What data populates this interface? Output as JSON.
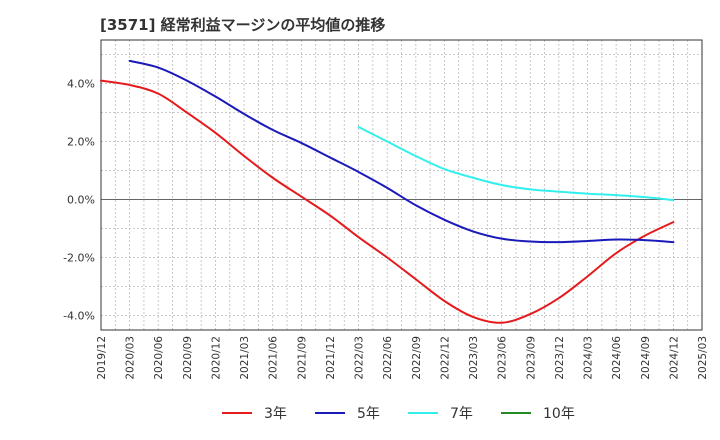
{
  "chart_data": {
    "type": "line",
    "title": "[3571]  経常利益マージンの平均値の推移",
    "xlabel": "",
    "ylabel": "",
    "x_ticks": [
      "2019/12",
      "2020/03",
      "2020/06",
      "2020/09",
      "2020/12",
      "2021/03",
      "2021/06",
      "2021/09",
      "2021/12",
      "2022/03",
      "2022/06",
      "2022/09",
      "2022/12",
      "2023/03",
      "2023/06",
      "2023/09",
      "2023/12",
      "2024/03",
      "2024/06",
      "2024/09",
      "2024/12",
      "2025/03"
    ],
    "y_ticks": [
      "-4.0%",
      "-2.0%",
      "0.0%",
      "2.0%",
      "4.0%"
    ],
    "y_tick_values": [
      -4,
      -2,
      0,
      2,
      4
    ],
    "ylim": [
      -4.5,
      5.5
    ],
    "grid": true,
    "legend_position": "bottom",
    "series": [
      {
        "name": "3年",
        "color": "#e41a1c",
        "points": [
          [
            "2019/12",
            4.1
          ],
          [
            "2020/03",
            3.95
          ],
          [
            "2020/06",
            3.65
          ],
          [
            "2020/09",
            3.0
          ],
          [
            "2020/12",
            2.3
          ],
          [
            "2021/03",
            1.5
          ],
          [
            "2021/06",
            0.75
          ],
          [
            "2021/09",
            0.1
          ],
          [
            "2021/12",
            -0.55
          ],
          [
            "2022/03",
            -1.3
          ],
          [
            "2022/06",
            -2.0
          ],
          [
            "2022/09",
            -2.75
          ],
          [
            "2022/12",
            -3.5
          ],
          [
            "2023/03",
            -4.05
          ],
          [
            "2023/06",
            -4.25
          ],
          [
            "2023/09",
            -3.95
          ],
          [
            "2023/12",
            -3.4
          ],
          [
            "2024/03",
            -2.65
          ],
          [
            "2024/06",
            -1.85
          ],
          [
            "2024/09",
            -1.25
          ],
          [
            "2024/12",
            -0.78
          ]
        ]
      },
      {
        "name": "5年",
        "color": "#1a1aba",
        "points": [
          [
            "2020/03",
            4.78
          ],
          [
            "2020/06",
            4.55
          ],
          [
            "2020/09",
            4.1
          ],
          [
            "2020/12",
            3.55
          ],
          [
            "2021/03",
            2.95
          ],
          [
            "2021/06",
            2.4
          ],
          [
            "2021/09",
            1.95
          ],
          [
            "2021/12",
            1.45
          ],
          [
            "2022/03",
            0.95
          ],
          [
            "2022/06",
            0.4
          ],
          [
            "2022/09",
            -0.2
          ],
          [
            "2022/12",
            -0.7
          ],
          [
            "2023/03",
            -1.1
          ],
          [
            "2023/06",
            -1.35
          ],
          [
            "2023/09",
            -1.45
          ],
          [
            "2023/12",
            -1.47
          ],
          [
            "2024/03",
            -1.43
          ],
          [
            "2024/06",
            -1.38
          ],
          [
            "2024/09",
            -1.4
          ],
          [
            "2024/12",
            -1.47
          ]
        ]
      },
      {
        "name": "7年",
        "color": "#33eeee",
        "points": [
          [
            "2022/03",
            2.5
          ],
          [
            "2022/06",
            2.0
          ],
          [
            "2022/09",
            1.5
          ],
          [
            "2022/12",
            1.05
          ],
          [
            "2023/03",
            0.75
          ],
          [
            "2023/06",
            0.5
          ],
          [
            "2023/09",
            0.35
          ],
          [
            "2023/12",
            0.27
          ],
          [
            "2024/03",
            0.2
          ],
          [
            "2024/06",
            0.15
          ],
          [
            "2024/09",
            0.08
          ],
          [
            "2024/12",
            -0.02
          ]
        ]
      },
      {
        "name": "10年",
        "color": "#228b22",
        "points": []
      }
    ]
  }
}
